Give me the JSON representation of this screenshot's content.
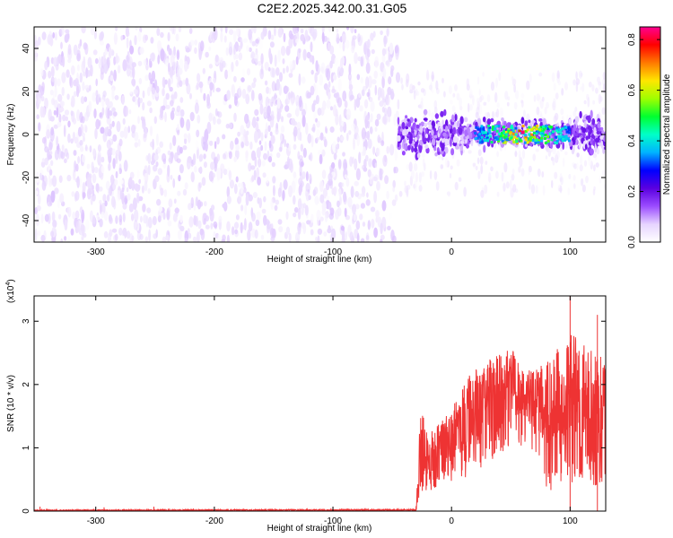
{
  "title": "C2E2.2025.342.00.31.G05",
  "chart_data": [
    {
      "type": "heatmap",
      "xlabel": "Height of straight line (km)",
      "ylabel": "Frequency (Hz)",
      "xlim": [
        -352,
        130
      ],
      "ylim": [
        -50,
        50
      ],
      "xticks": [
        -300,
        -200,
        -100,
        0,
        100
      ],
      "yticks": [
        -40,
        -20,
        0,
        20,
        40
      ],
      "colorbar": {
        "label": "Normalized spectral amplitude",
        "range": [
          0.0,
          0.85
        ],
        "ticks": [
          0.0,
          0.2,
          0.4,
          0.6,
          0.8
        ],
        "colors": [
          "#ffffff",
          "#e6d4ff",
          "#9b4cff",
          "#5a00e0",
          "#0000ff",
          "#00b4ff",
          "#00ffc8",
          "#00ff30",
          "#a0ff00",
          "#ffe600",
          "#ff7a00",
          "#ff0000",
          "#ff0090"
        ]
      },
      "regions": [
        {
          "x_range": [
            -352,
            -45
          ],
          "freq_range": [
            -50,
            50
          ],
          "amplitude_range": [
            0.0,
            0.08
          ],
          "description_level": "noise"
        },
        {
          "x_range": [
            -45,
            130
          ],
          "freq_range": [
            -12,
            12
          ],
          "amplitude_range": [
            0.05,
            0.2
          ]
        },
        {
          "x_range": [
            20,
            100
          ],
          "freq_range": [
            -4,
            4
          ],
          "amplitude_range": [
            0.3,
            0.85
          ]
        }
      ],
      "peak": {
        "x": 60,
        "freq": 1,
        "amplitude": 0.84
      }
    },
    {
      "type": "area",
      "xlabel": "Height of straight line (km)",
      "ylabel": "SNR (10 * v/v)",
      "scale_label": "(x10",
      "scale_exponent": "4",
      "xlim": [
        -352,
        130
      ],
      "ylim": [
        0,
        3.4
      ],
      "xticks": [
        -300,
        -200,
        -100,
        0,
        100
      ],
      "yticks": [
        0,
        1,
        2,
        3
      ],
      "color": "#ee3333",
      "envelope": {
        "x": [
          -352,
          -30,
          -26,
          -20,
          -10,
          0,
          10,
          20,
          30,
          40,
          50,
          60,
          70,
          80,
          90,
          100,
          110,
          120,
          130
        ],
        "upper": [
          0.02,
          0.03,
          1.7,
          1.2,
          1.4,
          1.6,
          2.0,
          2.3,
          2.4,
          2.5,
          2.6,
          2.3,
          2.2,
          2.4,
          2.6,
          2.8,
          2.7,
          2.5,
          2.5
        ],
        "lower": [
          0.0,
          0.0,
          0.1,
          0.2,
          0.3,
          0.4,
          0.5,
          0.6,
          0.7,
          0.8,
          0.9,
          1.0,
          0.7,
          0.3,
          0.3,
          0.3,
          0.3,
          0.3,
          0.3
        ]
      },
      "spikes": [
        {
          "x": -347,
          "y": 0.07
        },
        {
          "x": -293,
          "y": 0.06
        },
        {
          "x": -251,
          "y": 0.07
        },
        {
          "x": 100,
          "y": 3.4
        },
        {
          "x": 123,
          "y": 3.1
        }
      ]
    }
  ]
}
